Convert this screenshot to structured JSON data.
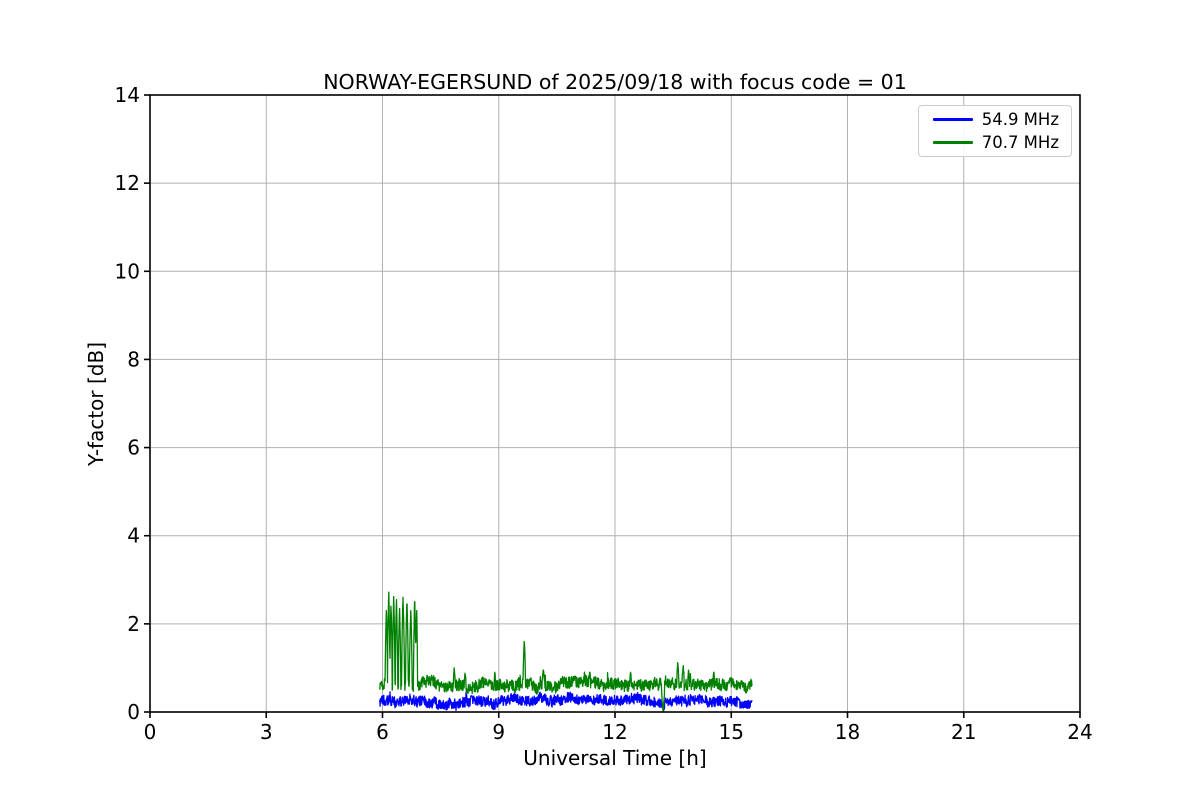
{
  "chart_data": {
    "type": "line",
    "title": "NORWAY-EGERSUND of 2025/09/18 with focus code = 01",
    "xlabel": "Universal Time [h]",
    "ylabel": "Y-factor [dB]",
    "xlim": [
      0,
      24
    ],
    "ylim": [
      0,
      14
    ],
    "xticks": [
      0,
      3,
      6,
      9,
      12,
      15,
      18,
      21,
      24
    ],
    "yticks": [
      0,
      2,
      4,
      6,
      8,
      10,
      12,
      14
    ],
    "grid": true,
    "grid_color": "#b0b0b0",
    "axis_color": "#000000",
    "legend_position": "upper right",
    "series": [
      {
        "name": "54.9 MHz",
        "color": "#0000ff",
        "x_start": 5.93,
        "x_end": 15.54,
        "baseline": 0.24,
        "noise_amp": 0.12,
        "wander_amp": 0.03,
        "burst_prob": 0.02,
        "burst_amp": 0.12,
        "floor": 0.02,
        "seed": 1234,
        "spikes": [
          {
            "x": 13.25,
            "value": 0.03,
            "width": 0.035
          }
        ]
      },
      {
        "name": "70.7 MHz",
        "color": "#008000",
        "x_start": 5.93,
        "x_end": 15.54,
        "baseline": 0.62,
        "noise_amp": 0.13,
        "wander_amp": 0.04,
        "burst_prob": 0.04,
        "burst_amp": 0.2,
        "floor": 0.02,
        "seed": 777,
        "spikes": [
          {
            "x": 6.1,
            "value": 2.3,
            "width": 0.03
          },
          {
            "x": 6.16,
            "value": 2.72,
            "width": 0.03
          },
          {
            "x": 6.22,
            "value": 2.4,
            "width": 0.03
          },
          {
            "x": 6.29,
            "value": 2.62,
            "width": 0.03
          },
          {
            "x": 6.36,
            "value": 2.55,
            "width": 0.03
          },
          {
            "x": 6.44,
            "value": 2.35,
            "width": 0.03
          },
          {
            "x": 6.53,
            "value": 2.6,
            "width": 0.035
          },
          {
            "x": 6.63,
            "value": 2.45,
            "width": 0.035
          },
          {
            "x": 6.73,
            "value": 2.3,
            "width": 0.035
          },
          {
            "x": 6.83,
            "value": 2.5,
            "width": 0.03
          },
          {
            "x": 6.88,
            "value": 2.3,
            "width": 0.025
          },
          {
            "x": 7.85,
            "value": 1.0,
            "width": 0.025
          },
          {
            "x": 8.13,
            "value": 0.88,
            "width": 0.02
          },
          {
            "x": 8.9,
            "value": 0.9,
            "width": 0.02
          },
          {
            "x": 9.66,
            "value": 1.6,
            "width": 0.03
          },
          {
            "x": 10.15,
            "value": 0.95,
            "width": 0.03
          },
          {
            "x": 11.35,
            "value": 0.9,
            "width": 0.02
          },
          {
            "x": 12.4,
            "value": 0.9,
            "width": 0.02
          },
          {
            "x": 13.24,
            "value": 0.02,
            "width": 0.04
          },
          {
            "x": 13.62,
            "value": 1.12,
            "width": 0.025
          },
          {
            "x": 13.76,
            "value": 1.05,
            "width": 0.025
          },
          {
            "x": 13.9,
            "value": 0.95,
            "width": 0.02
          },
          {
            "x": 14.55,
            "value": 0.9,
            "width": 0.02
          }
        ]
      }
    ]
  }
}
